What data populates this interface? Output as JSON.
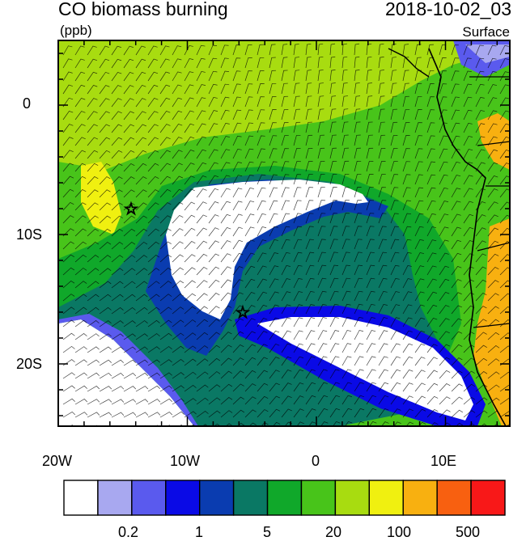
{
  "title": {
    "variable": "CO biomass burning",
    "units": "(ppb)",
    "datetime": "2018-10-02_03",
    "level": "Surface"
  },
  "axes": {
    "lon_labels": [
      "20W",
      "10W",
      "0",
      "10E"
    ],
    "lat_labels": [
      "0",
      "10S",
      "20S"
    ]
  },
  "colorbar": {
    "colors": [
      "#ffffff",
      "#a8a8f0",
      "#5a5aee",
      "#0a0ae6",
      "#0a3cb0",
      "#0a7864",
      "#10a82a",
      "#48c41a",
      "#a8dc10",
      "#f0f010",
      "#f8b010",
      "#f86010",
      "#f81818"
    ],
    "labels": [
      "0.2",
      "1",
      "5",
      "20",
      "100",
      "500"
    ]
  },
  "markers": [
    {
      "name": "star-marker-1",
      "lon": -14.5,
      "lat": -8.0
    },
    {
      "name": "star-marker-2",
      "lon": -5.7,
      "lat": -16.0
    }
  ]
}
